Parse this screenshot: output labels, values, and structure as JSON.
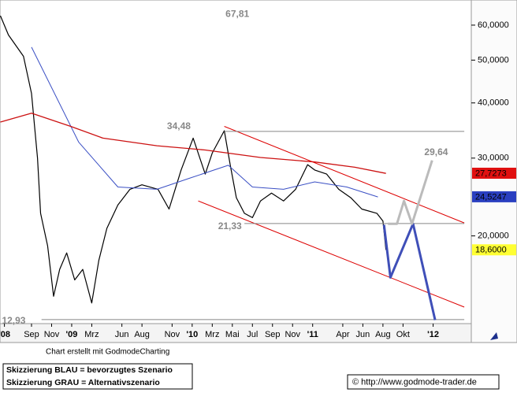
{
  "chart_data": {
    "type": "line",
    "log_y": true,
    "xlim": [
      4.86,
      51.8
    ],
    "ylim": [
      12.66,
      68.4
    ],
    "xticks": [
      {
        "value": 5.3,
        "label": "'08"
      },
      {
        "value": 8,
        "label": "Sep"
      },
      {
        "value": 10,
        "label": "Nov"
      },
      {
        "value": 12,
        "label": "'09"
      },
      {
        "value": 14,
        "label": "Mrz"
      },
      {
        "value": 17,
        "label": "Jun"
      },
      {
        "value": 19,
        "label": "Aug"
      },
      {
        "value": 22,
        "label": "Nov"
      },
      {
        "value": 24,
        "label": "'10"
      },
      {
        "value": 26,
        "label": "Mrz"
      },
      {
        "value": 28,
        "label": "Mai"
      },
      {
        "value": 30,
        "label": "Jul"
      },
      {
        "value": 32,
        "label": "Sep"
      },
      {
        "value": 34,
        "label": "Nov"
      },
      {
        "value": 36,
        "label": "'11"
      },
      {
        "value": 39,
        "label": "Apr"
      },
      {
        "value": 41,
        "label": "Jun"
      },
      {
        "value": 43,
        "label": "Aug"
      },
      {
        "value": 45,
        "label": "Okt"
      },
      {
        "value": 48,
        "label": "'12"
      }
    ],
    "yticks": [
      {
        "value": 20,
        "label": "20,0000"
      },
      {
        "value": 30,
        "label": "30,0000"
      },
      {
        "value": 40,
        "label": "40,0000"
      },
      {
        "value": 50,
        "label": "50,0000"
      },
      {
        "value": 60,
        "label": "60,0000"
      }
    ],
    "series": [
      {
        "color": "#000000",
        "width": 1.2,
        "x": [
          4.9,
          5.7,
          7.2,
          8.0,
          8.6,
          8.9,
          9.6,
          10.2,
          10.8,
          11.5,
          12.3,
          13.1,
          14.0,
          14.7,
          15.5,
          16.6,
          17.8,
          19.0,
          20.6,
          21.7,
          22.9,
          24.1,
          25.3,
          26.0,
          27.2,
          27.8,
          28.4,
          29.2,
          30.0,
          30.8,
          31.9,
          33.1,
          34.3,
          35.5,
          36.2,
          37.4,
          38.6,
          39.8,
          40.9,
          42.4,
          43.0,
          43.3
        ],
        "values": [
          63,
          57,
          51,
          42,
          30,
          22.5,
          19,
          14.6,
          16.8,
          18.3,
          15.9,
          16.8,
          14.1,
          17.6,
          20.8,
          23.5,
          25.5,
          26.1,
          25.5,
          23,
          28.2,
          33.3,
          27.6,
          30.8,
          34.6,
          28.9,
          24.4,
          22.5,
          22,
          24,
          25,
          24,
          25.5,
          29,
          28.2,
          27.6,
          25.5,
          24.4,
          23,
          22.5,
          21.6,
          18.6
        ]
      },
      {
        "color": "#3a4fc4",
        "width": 1,
        "x": [
          8.0,
          12.7,
          16.6,
          20.5,
          23.7,
          27.6,
          30.0,
          33.1,
          36.2,
          39.4,
          42.5
        ],
        "values": [
          53.5,
          32.6,
          25.8,
          25.5,
          27,
          28.9,
          25.8,
          25.5,
          26.5,
          25.8,
          24.5
        ]
      },
      {
        "color": "#cc1111",
        "width": 1.3,
        "x": [
          4.9,
          8.0,
          11.9,
          15.1,
          20.5,
          25.3,
          30.8,
          36.2,
          40.2,
          43.3
        ],
        "values": [
          36.2,
          37.9,
          35.4,
          33.3,
          32,
          31.3,
          30.1,
          29.4,
          28.6,
          27.7
        ]
      },
      {
        "color": "#dd0000",
        "width": 1,
        "x": [
          27.2,
          51.1
        ],
        "values": [
          35.4,
          21.4
        ]
      },
      {
        "color": "#dd0000",
        "width": 1,
        "x": [
          24.6,
          51.1
        ],
        "values": [
          24,
          13.8
        ]
      },
      {
        "color": "#888888",
        "width": 1,
        "x": [
          27.2,
          51.1
        ],
        "values": [
          34.48,
          34.48
        ]
      },
      {
        "color": "#888888",
        "width": 1,
        "x": [
          29.2,
          51.1
        ],
        "values": [
          21.33,
          21.33
        ]
      },
      {
        "color": "#888888",
        "width": 1,
        "x": [
          9.0,
          51.1
        ],
        "values": [
          12.93,
          12.93
        ]
      },
      {
        "color": "#3f4fb8",
        "width": 3,
        "x": [
          43.1,
          43.75,
          46.0,
          48.2
        ],
        "values": [
          21.2,
          16.1,
          21.3,
          12.9
        ]
      },
      {
        "color": "#bbbbbb",
        "width": 3,
        "x": [
          43.5,
          44.4,
          45.1,
          45.9,
          47.9
        ],
        "values": [
          21.3,
          21.3,
          24,
          21.3,
          29.64
        ]
      }
    ],
    "annotations": [
      {
        "x": 28.5,
        "value": 67.81,
        "label": "67,81"
      },
      {
        "x": 23.3,
        "value": 34.48,
        "label": "34,48"
      },
      {
        "x": 48.3,
        "value": 29.64,
        "label": "29,64"
      },
      {
        "x": 28.7,
        "value": 21.33,
        "label": "21,33"
      },
      {
        "x": 7.8,
        "value": 12.93,
        "label": "12,93"
      }
    ],
    "price_tags": [
      {
        "value": 27.7273,
        "label": "27,7273",
        "color": "#e01010",
        "text_color": "#ffffff"
      },
      {
        "value": 24.5247,
        "label": "24,5247",
        "color": "#2a3fc0",
        "text_color": "#ffffff"
      },
      {
        "value": 18.6,
        "label": "18,6000",
        "color": "#ffff33",
        "text_color": "#000000"
      }
    ],
    "credit": "Chart erstellt mit GodmodeCharting",
    "legend_lines": [
      "Skizzierung BLAU = bevorzugtes Szenario",
      "Skizzierung GRAU = Alternativszenario"
    ],
    "source": "© http://www.godmode-trader.de"
  }
}
